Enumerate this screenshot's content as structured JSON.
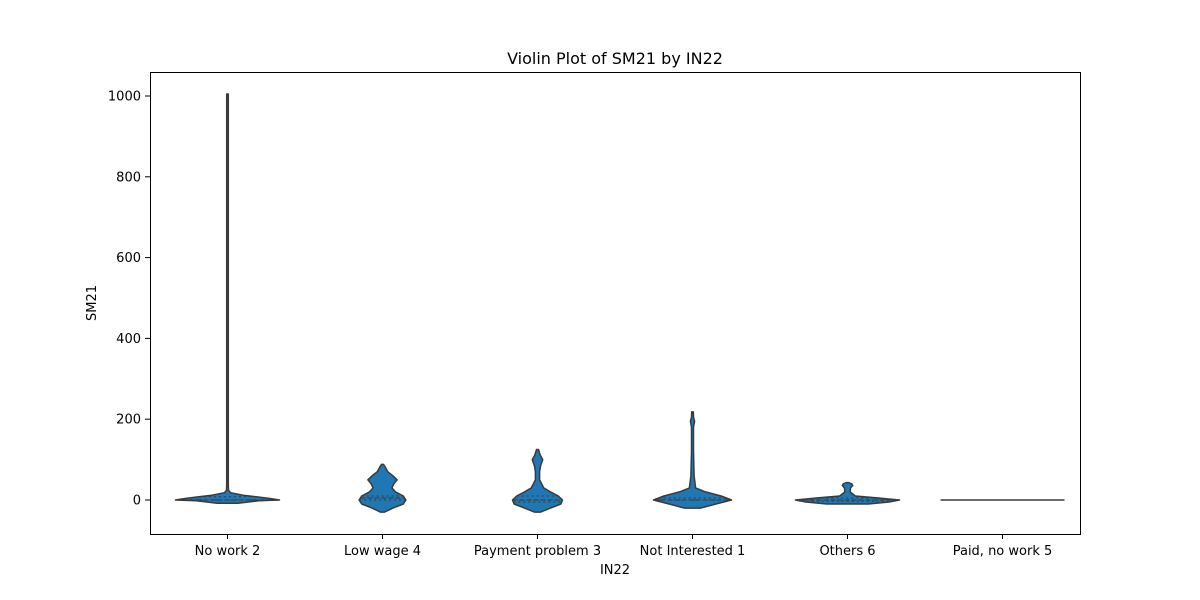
{
  "chart_data": {
    "type": "violin",
    "title": "Violin Plot of SM21 by IN22",
    "xlabel": "IN22",
    "ylabel": "SM21",
    "categories": [
      "No work 2",
      "Low wage 4",
      "Payment problem 3",
      "Not Interested 1",
      "Others 6",
      "Paid, no work 5"
    ],
    "ylim": [
      -80,
      1060
    ],
    "yticks": [
      0,
      200,
      400,
      600,
      800,
      1000
    ],
    "colors": {
      "fill": "#1f77b4",
      "edge": "#3a3a3a"
    },
    "violins": [
      {
        "category": "No work 2",
        "min": 0,
        "max": 1005,
        "median": 0,
        "q1": 0,
        "q3": 8,
        "profile": [
          [
            -8,
            0.2
          ],
          [
            -2,
            0.6
          ],
          [
            0,
            1.0
          ],
          [
            4,
            0.8
          ],
          [
            8,
            0.55
          ],
          [
            12,
            0.3
          ],
          [
            18,
            0.06
          ],
          [
            24,
            0.02
          ],
          [
            40,
            0.01
          ],
          [
            1005,
            0.01
          ]
        ]
      },
      {
        "category": "Low wage 4",
        "min": -30,
        "max": 88,
        "median": 5,
        "q1": 0,
        "q3": 10,
        "profile": [
          [
            -30,
            0.04
          ],
          [
            -20,
            0.2
          ],
          [
            -10,
            0.4
          ],
          [
            0,
            0.45
          ],
          [
            10,
            0.4
          ],
          [
            20,
            0.25
          ],
          [
            30,
            0.18
          ],
          [
            40,
            0.22
          ],
          [
            50,
            0.28
          ],
          [
            60,
            0.2
          ],
          [
            70,
            0.1
          ],
          [
            80,
            0.06
          ],
          [
            88,
            0.02
          ]
        ]
      },
      {
        "category": "Payment problem 3",
        "min": -30,
        "max": 125,
        "median": 0,
        "q1": -5,
        "q3": 10,
        "profile": [
          [
            -30,
            0.06
          ],
          [
            -20,
            0.25
          ],
          [
            -10,
            0.45
          ],
          [
            0,
            0.48
          ],
          [
            10,
            0.4
          ],
          [
            20,
            0.25
          ],
          [
            30,
            0.12
          ],
          [
            50,
            0.04
          ],
          [
            70,
            0.04
          ],
          [
            85,
            0.06
          ],
          [
            100,
            0.1
          ],
          [
            112,
            0.05
          ],
          [
            125,
            0.02
          ]
        ]
      },
      {
        "category": "Not Interested 1",
        "min": -20,
        "max": 218,
        "median": 0,
        "q1": 0,
        "q3": 5,
        "profile": [
          [
            -20,
            0.15
          ],
          [
            -10,
            0.45
          ],
          [
            0,
            0.75
          ],
          [
            10,
            0.55
          ],
          [
            20,
            0.25
          ],
          [
            30,
            0.06
          ],
          [
            60,
            0.03
          ],
          [
            120,
            0.02
          ],
          [
            180,
            0.02
          ],
          [
            195,
            0.04
          ],
          [
            205,
            0.02
          ],
          [
            218,
            0.01
          ]
        ]
      },
      {
        "category": "Others 6",
        "min": -10,
        "max": 43,
        "median": 0,
        "q1": -3,
        "q3": 5,
        "profile": [
          [
            -10,
            0.4
          ],
          [
            -5,
            0.8
          ],
          [
            0,
            1.0
          ],
          [
            5,
            0.6
          ],
          [
            10,
            0.15
          ],
          [
            20,
            0.05
          ],
          [
            30,
            0.06
          ],
          [
            36,
            0.1
          ],
          [
            40,
            0.08
          ],
          [
            43,
            0.02
          ]
        ]
      },
      {
        "category": "Paid, no work 5",
        "min": 0,
        "max": 0,
        "median": 0,
        "q1": 0,
        "q3": 0,
        "profile": []
      }
    ]
  }
}
